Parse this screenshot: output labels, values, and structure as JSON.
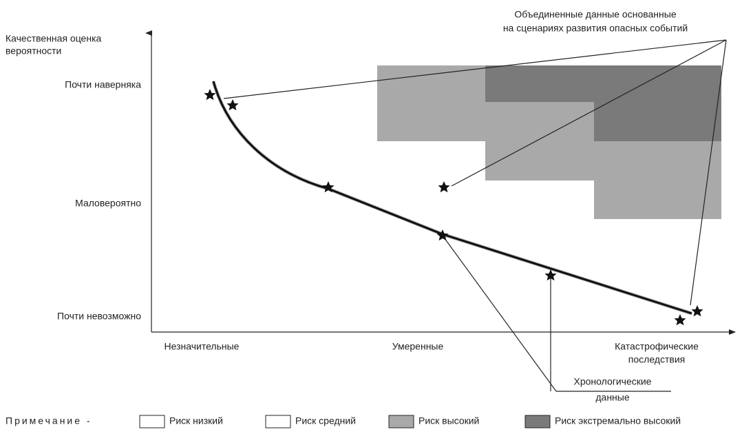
{
  "y_axis": {
    "title": [
      "Качественная оценка",
      "вероятности"
    ],
    "levels": [
      "Почти наверняка",
      "Маловероятно",
      "Почти невозможно"
    ]
  },
  "x_axis": {
    "levels": [
      "Незначительные",
      "Умеренные",
      [
        "Катастрофические",
        "последствия"
      ]
    ]
  },
  "callouts": {
    "combined": [
      "Объединенные данные  основанные",
      "на сценариях развития опасных событий"
    ],
    "chronological": [
      "Хронологические",
      "данные"
    ]
  },
  "legend": {
    "label": "Примечание -",
    "items": [
      "Риск низкий",
      "Риск средний",
      "Риск высокий",
      "Риск экстремально высокий"
    ]
  }
}
